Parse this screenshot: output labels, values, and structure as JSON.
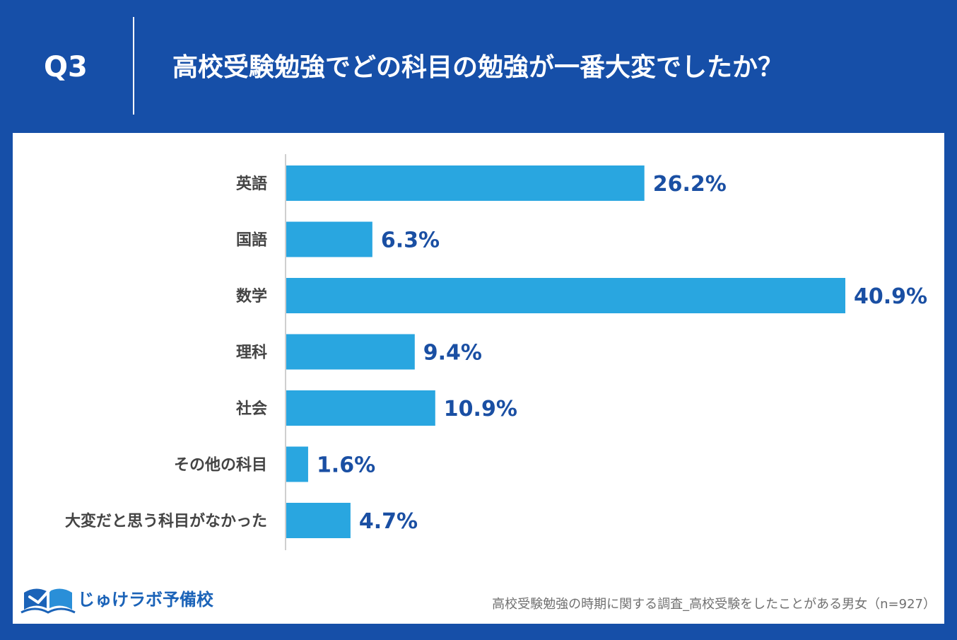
{
  "header": {
    "question_number": "Q3",
    "title": "高校受験勉強でどの科目の勉強が一番大変でしたか？"
  },
  "chart_data": {
    "type": "bar",
    "orientation": "horizontal",
    "categories": [
      "英語",
      "国語",
      "数学",
      "理科",
      "社会",
      "その他の科目",
      "大変だと思う科目がなかった"
    ],
    "values": [
      26.2,
      6.3,
      40.9,
      9.4,
      10.9,
      1.6,
      4.7
    ],
    "data_labels": [
      "26.2%",
      "6.3%",
      "40.9%",
      "9.4%",
      "10.9%",
      "1.6%",
      "4.7%"
    ],
    "unit": "%",
    "xlim": [
      0,
      40.9
    ],
    "grid": false,
    "bar_color": "#29a6e0",
    "label_color": "#1a4fa3"
  },
  "footer": {
    "logo_text": "じゅけラボ予備校",
    "note": "高校受験勉強の時期に関する調査_高校受験をしたことがある男女（n=927）"
  },
  "colors": {
    "background": "#164fa8",
    "panel": "#ffffff",
    "axis": "#cfcfcf",
    "category_text": "#444444",
    "note_text": "#707070",
    "logo": "#1b63b8"
  }
}
